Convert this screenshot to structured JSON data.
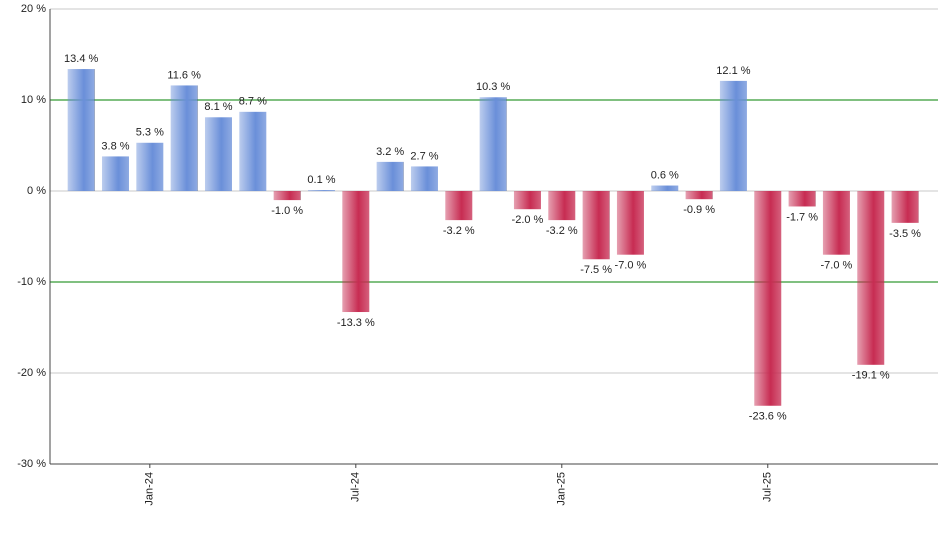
{
  "chart_data": {
    "type": "bar",
    "categories": [
      null,
      null,
      "Jan-24",
      null,
      null,
      null,
      null,
      null,
      "Jul-24",
      null,
      null,
      null,
      null,
      null,
      "Jan-25",
      null,
      null,
      null,
      null,
      null,
      "Jul-25",
      null,
      null,
      null,
      null
    ],
    "values": [
      13.4,
      3.8,
      5.3,
      11.6,
      8.1,
      8.7,
      -1.0,
      0.1,
      -13.3,
      3.2,
      2.7,
      -3.2,
      10.3,
      -2.0,
      -3.2,
      -7.5,
      -7.0,
      0.6,
      -0.9,
      12.1,
      -23.6,
      -1.7,
      -7.0,
      -19.1,
      -3.5
    ],
    "value_labels": [
      "13.4 %",
      "3.8 %",
      "5.3 %",
      "11.6 %",
      "8.1 %",
      "8.7 %",
      "-1.0 %",
      "0.1 %",
      "-13.3 %",
      "3.2 %",
      "2.7 %",
      "-3.2 %",
      "10.3 %",
      "-2.0 %",
      "-3.2 %",
      "-7.5 %",
      "-7.0 %",
      "0.6 %",
      "-0.9 %",
      "12.1 %",
      "-23.6 %",
      "-1.7 %",
      "-7.0 %",
      "-19.1 %",
      "-3.5 %"
    ],
    "positive_color": "#6a8fd9",
    "negative_color": "#c72c52",
    "ylim": [
      -30,
      20
    ],
    "yticks": [
      {
        "value": -30,
        "label": "-30 %"
      },
      {
        "value": -20,
        "label": "-20 %"
      },
      {
        "value": -10,
        "label": "-10 %"
      },
      {
        "value": 0,
        "label": "0 %"
      },
      {
        "value": 10,
        "label": "10 %"
      },
      {
        "value": 20,
        "label": "20 %"
      }
    ],
    "grid": true,
    "grid_colors": [
      "#c8c8c8",
      "#c8c8c8",
      "#008000",
      "#c8c8c8",
      "#008000",
      "#c8c8c8"
    ]
  }
}
